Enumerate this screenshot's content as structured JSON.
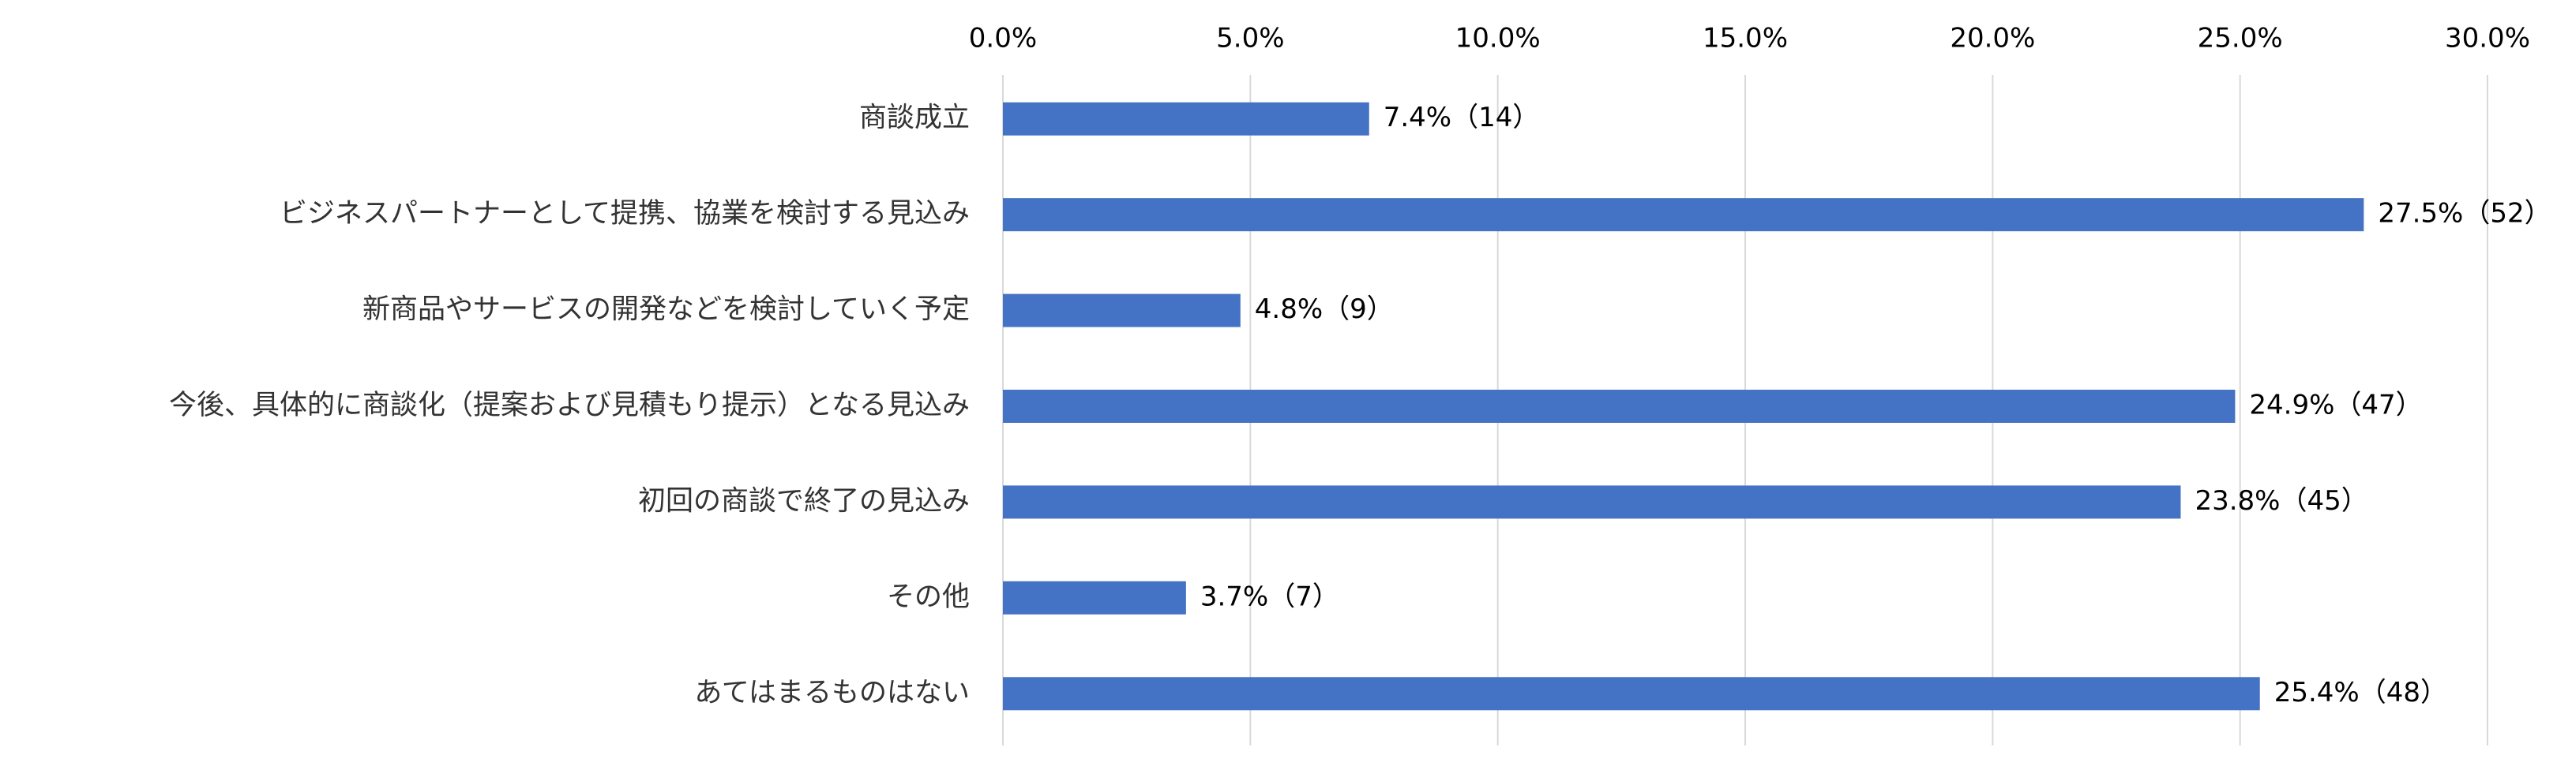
{
  "chart_data": {
    "type": "hbar",
    "categories": [
      "商談成立",
      "ビジネスパートナーとして提携、協業を検討する見込み",
      "新商品やサービスの開発などを検討していく予定",
      "今後、具体的に商談化（提案および見積もり提示）となる見込み",
      "初回の商談で終了の見込み",
      "その他",
      "あてはまるものはない"
    ],
    "values": [
      7.4,
      27.5,
      4.8,
      24.9,
      23.8,
      3.7,
      25.4
    ],
    "value_labels": [
      "7.4%（14）",
      "27.5%（52）",
      "4.8%（9）",
      "24.9%（47）",
      "23.8%（45）",
      "3.7%（7）",
      "25.4%（48）"
    ],
    "color": "#4472c4",
    "xlim": [
      0,
      30
    ],
    "xticks": [
      {
        "value": 0,
        "label": "0.0%"
      },
      {
        "value": 5,
        "label": "5.0%"
      },
      {
        "value": 10,
        "label": "10.0%"
      },
      {
        "value": 15,
        "label": "15.0%"
      },
      {
        "value": 20,
        "label": "20.0%"
      },
      {
        "value": 25,
        "label": "25.0%"
      },
      {
        "value": 30,
        "label": "30.0%"
      }
    ],
    "grid": true
  }
}
